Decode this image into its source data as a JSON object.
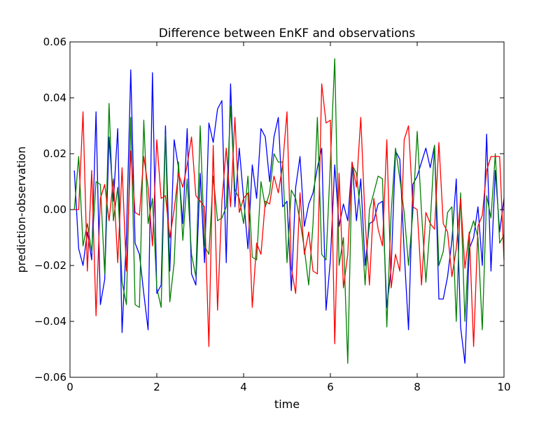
{
  "chart_data": {
    "type": "line",
    "title": "Difference between EnKF and observations",
    "xlabel": "time",
    "ylabel": "prediction-observation",
    "xlim": [
      0,
      10
    ],
    "ylim": [
      -0.06,
      0.06
    ],
    "xticks": [
      0,
      2,
      4,
      6,
      8,
      10
    ],
    "xtick_labels": [
      "0",
      "2",
      "4",
      "6",
      "8",
      "10"
    ],
    "yticks": [
      -0.06,
      -0.04,
      -0.02,
      0.0,
      0.02,
      0.04,
      0.06
    ],
    "ytick_labels": [
      "−0.06",
      "−0.04",
      "−0.02",
      "0.00",
      "0.02",
      "0.04",
      "0.06"
    ],
    "grid": false,
    "legend": "none",
    "x": [
      0.1,
      0.2,
      0.3,
      0.4,
      0.5,
      0.6,
      0.7,
      0.8,
      0.9,
      1.0,
      1.1,
      1.2,
      1.3,
      1.4,
      1.5,
      1.6,
      1.7,
      1.8,
      1.9,
      2.0,
      2.1,
      2.2,
      2.3,
      2.4,
      2.5,
      2.6,
      2.7,
      2.8,
      2.9,
      3.0,
      3.1,
      3.2,
      3.3,
      3.4,
      3.5,
      3.6,
      3.7,
      3.8,
      3.9,
      4.0,
      4.1,
      4.2,
      4.3,
      4.4,
      4.5,
      4.6,
      4.7,
      4.8,
      4.9,
      5.0,
      5.1,
      5.2,
      5.3,
      5.4,
      5.5,
      5.6,
      5.7,
      5.8,
      5.9,
      6.0,
      6.1,
      6.2,
      6.3,
      6.4,
      6.5,
      6.6,
      6.7,
      6.8,
      6.9,
      7.0,
      7.1,
      7.2,
      7.3,
      7.4,
      7.5,
      7.6,
      7.7,
      7.8,
      7.9,
      8.0,
      8.1,
      8.2,
      8.3,
      8.4,
      8.5,
      8.6,
      8.7,
      8.8,
      8.9,
      9.0,
      9.1,
      9.2,
      9.3,
      9.4,
      9.5,
      9.6,
      9.7,
      9.8,
      9.9,
      10.0
    ],
    "series": [
      {
        "color": "#0000ff",
        "values": [
          0.014,
          -0.014,
          -0.02,
          -0.008,
          -0.018,
          0.035,
          -0.034,
          -0.025,
          0.026,
          0.003,
          0.029,
          -0.044,
          -0.01,
          0.05,
          -0.012,
          -0.016,
          -0.03,
          -0.043,
          0.049,
          -0.03,
          -0.027,
          0.03,
          -0.022,
          0.025,
          0.015,
          -0.005,
          0.029,
          -0.023,
          -0.027,
          0.013,
          -0.019,
          0.031,
          0.024,
          0.036,
          0.039,
          -0.019,
          0.045,
          0.001,
          0.022,
          0.004,
          -0.014,
          0.016,
          0.004,
          0.029,
          0.026,
          0.01,
          0.026,
          0.033,
          0.001,
          0.003,
          -0.029,
          0.008,
          0.019,
          -0.006,
          0.002,
          0.006,
          0.015,
          0.022,
          -0.036,
          -0.018,
          0.016,
          -0.006,
          0.002,
          -0.004,
          0.017,
          -0.004,
          0.011,
          -0.02,
          -0.005,
          -0.004,
          0.002,
          0.003,
          -0.035,
          -0.021,
          0.021,
          0.018,
          -0.015,
          -0.043,
          0.009,
          0.012,
          0.017,
          0.022,
          0.015,
          0.023,
          -0.032,
          -0.032,
          -0.024,
          -0.011,
          0.011,
          -0.042,
          -0.055,
          -0.014,
          -0.01,
          0.001,
          -0.02,
          0.027,
          -0.022,
          0.014,
          -0.008,
          0.004
        ]
      },
      {
        "color": "#008000",
        "values": [
          0.0,
          0.019,
          -0.013,
          -0.005,
          -0.015,
          0.01,
          0.009,
          -0.023,
          0.038,
          -0.004,
          0.008,
          -0.026,
          -0.034,
          0.033,
          -0.034,
          -0.035,
          0.032,
          -0.005,
          0.004,
          -0.028,
          -0.035,
          0.027,
          -0.033,
          -0.019,
          0.017,
          -0.011,
          0.011,
          -0.016,
          -0.024,
          0.03,
          -0.013,
          -0.016,
          0.012,
          -0.004,
          -0.003,
          0.001,
          0.037,
          0.007,
          0.004,
          -0.005,
          0.012,
          -0.017,
          -0.018,
          0.01,
          0.001,
          0.006,
          0.02,
          0.017,
          0.017,
          -0.019,
          0.007,
          0.004,
          -0.004,
          -0.014,
          -0.027,
          -0.005,
          0.033,
          -0.016,
          -0.018,
          0.017,
          0.054,
          -0.02,
          -0.01,
          -0.055,
          0.016,
          0.013,
          -0.002,
          -0.027,
          0.0,
          0.006,
          0.012,
          0.011,
          -0.042,
          -0.001,
          0.022,
          0.011,
          -0.001,
          -0.02,
          -0.001,
          0.028,
          -0.001,
          -0.026,
          -0.005,
          0.023,
          -0.02,
          -0.015,
          -0.001,
          0.001,
          -0.04,
          0.006,
          -0.04,
          -0.009,
          -0.004,
          -0.01,
          -0.043,
          0.005,
          -0.003,
          0.02,
          -0.012,
          -0.009
        ]
      },
      {
        "color": "#ff0000",
        "values": [
          0.0,
          0.0,
          0.035,
          -0.022,
          0.014,
          -0.038,
          0.004,
          0.009,
          -0.004,
          0.011,
          -0.019,
          0.015,
          -0.022,
          0.021,
          -0.001,
          -0.002,
          0.019,
          0.008,
          -0.013,
          0.025,
          0.004,
          0.005,
          -0.01,
          0.0,
          0.013,
          0.008,
          0.016,
          0.026,
          0.005,
          0.003,
          0.001,
          -0.049,
          0.023,
          -0.036,
          0.003,
          0.022,
          0.001,
          0.033,
          -0.001,
          0.004,
          0.006,
          -0.035,
          -0.012,
          -0.016,
          0.003,
          0.002,
          0.012,
          0.006,
          0.016,
          0.035,
          -0.021,
          -0.03,
          0.006,
          -0.016,
          -0.008,
          -0.022,
          -0.023,
          0.045,
          0.031,
          0.032,
          -0.048,
          0.013,
          -0.028,
          -0.016,
          0.017,
          0.008,
          0.033,
          -0.004,
          -0.027,
          0.004,
          -0.007,
          -0.013,
          0.025,
          -0.028,
          -0.016,
          -0.022,
          0.025,
          0.03,
          0.001,
          0.0,
          -0.027,
          -0.001,
          -0.005,
          -0.007,
          0.024,
          -0.005,
          -0.008,
          -0.024,
          -0.014,
          0.004,
          -0.021,
          -0.008,
          -0.049,
          -0.006,
          -0.002,
          0.014,
          0.019,
          0.019,
          0.019,
          -0.018
        ]
      }
    ]
  }
}
